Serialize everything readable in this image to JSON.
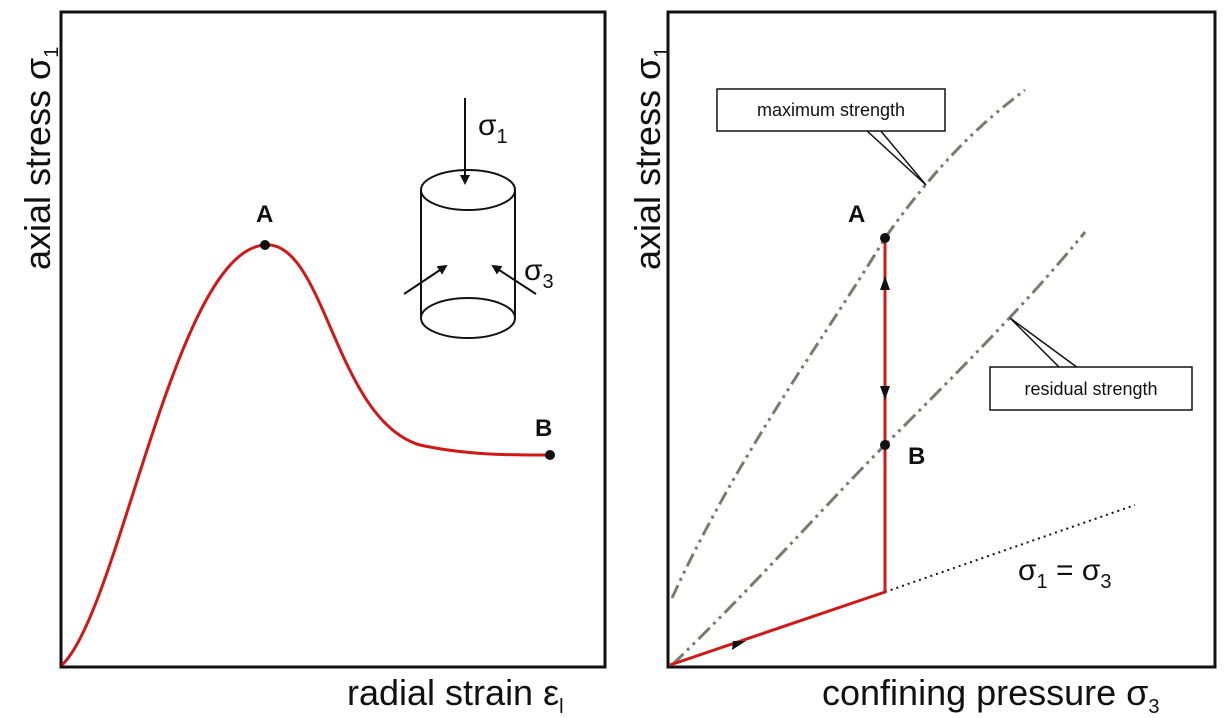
{
  "left_panel": {
    "y_label": {
      "text": "axial stress σ",
      "sub": "1"
    },
    "x_label": {
      "text": "radial strain ε",
      "sub": "l"
    },
    "point_a": "A",
    "point_b": "B",
    "sigma_1": {
      "text": "σ",
      "sub": "1"
    },
    "sigma_3": {
      "text": "σ",
      "sub": "3"
    }
  },
  "right_panel": {
    "y_label": {
      "text": "axial stress σ",
      "sub": "1"
    },
    "x_label": {
      "text": "confining pressure σ",
      "sub": "3"
    },
    "maximum_strength": "maximum strength",
    "residual_strength": "residual strength",
    "point_a": "A",
    "point_b": "B",
    "equality": {
      "left": "σ",
      "left_sub": "1",
      "eq": " = σ",
      "right_sub": "3"
    }
  }
}
